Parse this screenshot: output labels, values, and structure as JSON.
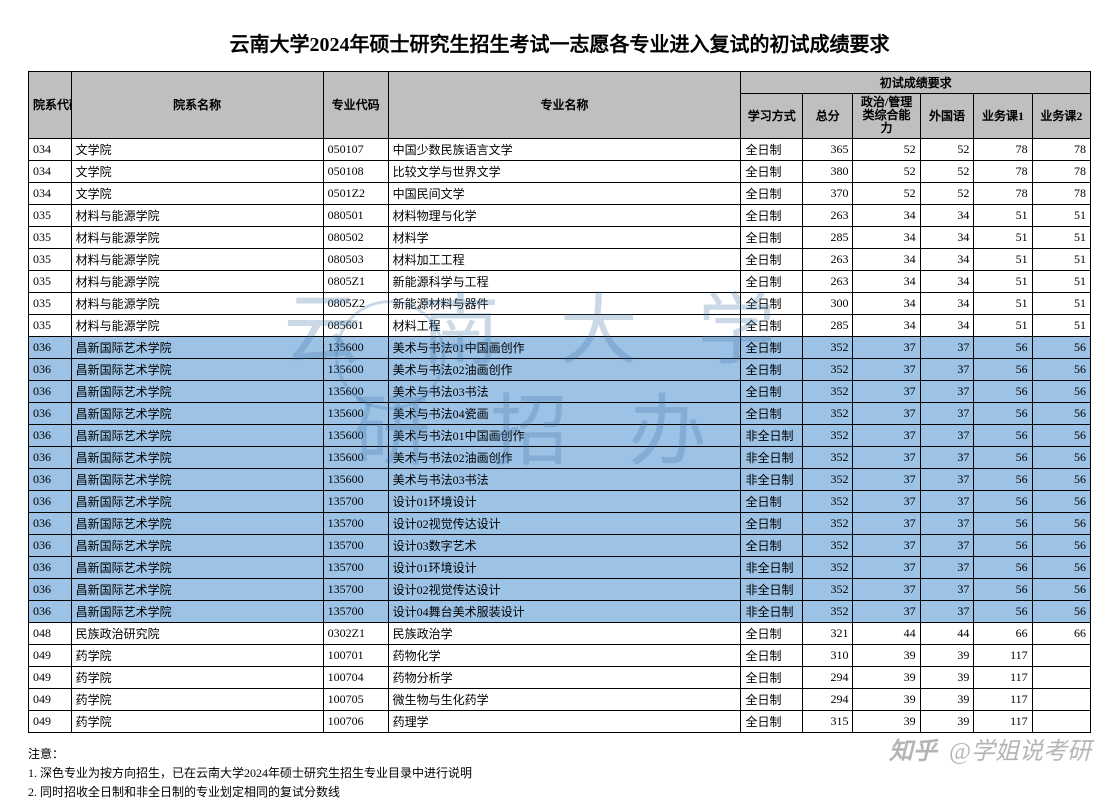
{
  "title": "云南大学2024年硕士研究生招生考试一志愿各专业进入复试的初试成绩要求",
  "headers": {
    "dept_code": "院系代码",
    "dept_name": "院系名称",
    "major_code": "专业代码",
    "major_name": "专业名称",
    "score_group": "初试成绩要求",
    "mode": "学习方式",
    "total": "总分",
    "politics": "政治/管理类综合能力",
    "foreign": "外国语",
    "subj1": "业务课1",
    "subj2": "业务课2"
  },
  "colors": {
    "header_bg": "#bfbfbf",
    "highlight_bg": "#9cc2e5",
    "normal_bg": "#ffffff",
    "border": "#000000",
    "watermark": "rgba(70,120,170,0.28)"
  },
  "rows": [
    {
      "hl": false,
      "dept": "034",
      "deptn": "文学院",
      "maj": "050107",
      "majn": "中国少数民族语言文学",
      "mode": "全日制",
      "total": "365",
      "pol": "52",
      "lang": "52",
      "s1": "78",
      "s2": "78"
    },
    {
      "hl": false,
      "dept": "034",
      "deptn": "文学院",
      "maj": "050108",
      "majn": "比较文学与世界文学",
      "mode": "全日制",
      "total": "380",
      "pol": "52",
      "lang": "52",
      "s1": "78",
      "s2": "78"
    },
    {
      "hl": false,
      "dept": "034",
      "deptn": "文学院",
      "maj": "0501Z2",
      "majn": "中国民间文学",
      "mode": "全日制",
      "total": "370",
      "pol": "52",
      "lang": "52",
      "s1": "78",
      "s2": "78"
    },
    {
      "hl": false,
      "dept": "035",
      "deptn": "材料与能源学院",
      "maj": "080501",
      "majn": "材料物理与化学",
      "mode": "全日制",
      "total": "263",
      "pol": "34",
      "lang": "34",
      "s1": "51",
      "s2": "51"
    },
    {
      "hl": false,
      "dept": "035",
      "deptn": "材料与能源学院",
      "maj": "080502",
      "majn": "材料学",
      "mode": "全日制",
      "total": "285",
      "pol": "34",
      "lang": "34",
      "s1": "51",
      "s2": "51"
    },
    {
      "hl": false,
      "dept": "035",
      "deptn": "材料与能源学院",
      "maj": "080503",
      "majn": "材料加工工程",
      "mode": "全日制",
      "total": "263",
      "pol": "34",
      "lang": "34",
      "s1": "51",
      "s2": "51"
    },
    {
      "hl": false,
      "dept": "035",
      "deptn": "材料与能源学院",
      "maj": "0805Z1",
      "majn": "新能源科学与工程",
      "mode": "全日制",
      "total": "263",
      "pol": "34",
      "lang": "34",
      "s1": "51",
      "s2": "51"
    },
    {
      "hl": false,
      "dept": "035",
      "deptn": "材料与能源学院",
      "maj": "0805Z2",
      "majn": "新能源材料与器件",
      "mode": "全日制",
      "total": "300",
      "pol": "34",
      "lang": "34",
      "s1": "51",
      "s2": "51"
    },
    {
      "hl": false,
      "dept": "035",
      "deptn": "材料与能源学院",
      "maj": "085601",
      "majn": "材料工程",
      "mode": "全日制",
      "total": "285",
      "pol": "34",
      "lang": "34",
      "s1": "51",
      "s2": "51"
    },
    {
      "hl": true,
      "dept": "036",
      "deptn": "昌新国际艺术学院",
      "maj": "135600",
      "majn": "美术与书法01中国画创作",
      "mode": "全日制",
      "total": "352",
      "pol": "37",
      "lang": "37",
      "s1": "56",
      "s2": "56"
    },
    {
      "hl": true,
      "dept": "036",
      "deptn": "昌新国际艺术学院",
      "maj": "135600",
      "majn": "美术与书法02油画创作",
      "mode": "全日制",
      "total": "352",
      "pol": "37",
      "lang": "37",
      "s1": "56",
      "s2": "56"
    },
    {
      "hl": true,
      "dept": "036",
      "deptn": "昌新国际艺术学院",
      "maj": "135600",
      "majn": "美术与书法03书法",
      "mode": "全日制",
      "total": "352",
      "pol": "37",
      "lang": "37",
      "s1": "56",
      "s2": "56"
    },
    {
      "hl": true,
      "dept": "036",
      "deptn": "昌新国际艺术学院",
      "maj": "135600",
      "majn": "美术与书法04瓷画",
      "mode": "全日制",
      "total": "352",
      "pol": "37",
      "lang": "37",
      "s1": "56",
      "s2": "56"
    },
    {
      "hl": true,
      "dept": "036",
      "deptn": "昌新国际艺术学院",
      "maj": "135600",
      "majn": "美术与书法01中国画创作",
      "mode": "非全日制",
      "total": "352",
      "pol": "37",
      "lang": "37",
      "s1": "56",
      "s2": "56"
    },
    {
      "hl": true,
      "dept": "036",
      "deptn": "昌新国际艺术学院",
      "maj": "135600",
      "majn": "美术与书法02油画创作",
      "mode": "非全日制",
      "total": "352",
      "pol": "37",
      "lang": "37",
      "s1": "56",
      "s2": "56"
    },
    {
      "hl": true,
      "dept": "036",
      "deptn": "昌新国际艺术学院",
      "maj": "135600",
      "majn": "美术与书法03书法",
      "mode": "非全日制",
      "total": "352",
      "pol": "37",
      "lang": "37",
      "s1": "56",
      "s2": "56"
    },
    {
      "hl": true,
      "dept": "036",
      "deptn": "昌新国际艺术学院",
      "maj": "135700",
      "majn": "设计01环境设计",
      "mode": "全日制",
      "total": "352",
      "pol": "37",
      "lang": "37",
      "s1": "56",
      "s2": "56"
    },
    {
      "hl": true,
      "dept": "036",
      "deptn": "昌新国际艺术学院",
      "maj": "135700",
      "majn": "设计02视觉传达设计",
      "mode": "全日制",
      "total": "352",
      "pol": "37",
      "lang": "37",
      "s1": "56",
      "s2": "56"
    },
    {
      "hl": true,
      "dept": "036",
      "deptn": "昌新国际艺术学院",
      "maj": "135700",
      "majn": "设计03数字艺术",
      "mode": "全日制",
      "total": "352",
      "pol": "37",
      "lang": "37",
      "s1": "56",
      "s2": "56"
    },
    {
      "hl": true,
      "dept": "036",
      "deptn": "昌新国际艺术学院",
      "maj": "135700",
      "majn": "设计01环境设计",
      "mode": "非全日制",
      "total": "352",
      "pol": "37",
      "lang": "37",
      "s1": "56",
      "s2": "56"
    },
    {
      "hl": true,
      "dept": "036",
      "deptn": "昌新国际艺术学院",
      "maj": "135700",
      "majn": "设计02视觉传达设计",
      "mode": "非全日制",
      "total": "352",
      "pol": "37",
      "lang": "37",
      "s1": "56",
      "s2": "56"
    },
    {
      "hl": true,
      "dept": "036",
      "deptn": "昌新国际艺术学院",
      "maj": "135700",
      "majn": "设计04舞台美术服装设计",
      "mode": "非全日制",
      "total": "352",
      "pol": "37",
      "lang": "37",
      "s1": "56",
      "s2": "56"
    },
    {
      "hl": false,
      "dept": "048",
      "deptn": "民族政治研究院",
      "maj": "0302Z1",
      "majn": "民族政治学",
      "mode": "全日制",
      "total": "321",
      "pol": "44",
      "lang": "44",
      "s1": "66",
      "s2": "66"
    },
    {
      "hl": false,
      "dept": "049",
      "deptn": "药学院",
      "maj": "100701",
      "majn": "药物化学",
      "mode": "全日制",
      "total": "310",
      "pol": "39",
      "lang": "39",
      "s1": "117",
      "s2": ""
    },
    {
      "hl": false,
      "dept": "049",
      "deptn": "药学院",
      "maj": "100704",
      "majn": "药物分析学",
      "mode": "全日制",
      "total": "294",
      "pol": "39",
      "lang": "39",
      "s1": "117",
      "s2": ""
    },
    {
      "hl": false,
      "dept": "049",
      "deptn": "药学院",
      "maj": "100705",
      "majn": "微生物与生化药学",
      "mode": "全日制",
      "total": "294",
      "pol": "39",
      "lang": "39",
      "s1": "117",
      "s2": ""
    },
    {
      "hl": false,
      "dept": "049",
      "deptn": "药学院",
      "maj": "100706",
      "majn": "药理学",
      "mode": "全日制",
      "total": "315",
      "pol": "39",
      "lang": "39",
      "s1": "117",
      "s2": ""
    }
  ],
  "notes": {
    "heading": "注意：",
    "n1": "1. 深色专业为按方向招生，已在云南大学2024年硕士研究生招生专业目录中进行说明",
    "n2": "2. 同时招收全日制和非全日制的专业划定相同的复试分数线"
  },
  "watermark": {
    "line1": "云南大学",
    "line2": "研招办"
  },
  "corner_watermark": {
    "logo": "知乎",
    "text": "@学姐说考研"
  }
}
